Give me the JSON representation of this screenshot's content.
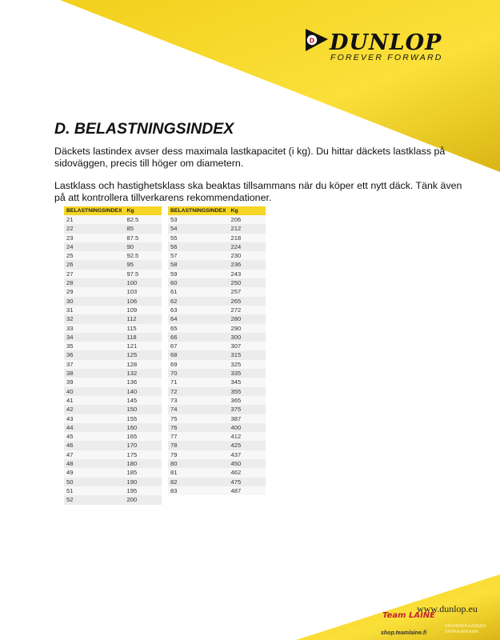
{
  "header": {
    "brand": "DUNLOP",
    "tagline": "FOREVER FORWARD",
    "brand_color": "#f5d525"
  },
  "title": "D. BELASTNINGSINDEX",
  "paragraphs": [
    "Däckets lastindex avser dess maximala lastkapacitet (i kg). Du hittar däckets lastklass på sidoväggen, precis till höger om diametern.",
    "Lastklass och hastighetsklass ska beaktas tillsammans när du köper ett nytt däck. Tänk även på att kontrollera tillverkarens rekommendationer."
  ],
  "tables": [
    {
      "headers": [
        "BELASTNINGSINDEX",
        "Kg"
      ],
      "rows": [
        [
          "21",
          "82.5"
        ],
        [
          "22",
          "85"
        ],
        [
          "23",
          "87.5"
        ],
        [
          "24",
          "90"
        ],
        [
          "25",
          "92.5"
        ],
        [
          "26",
          "95"
        ],
        [
          "27",
          "97.5"
        ],
        [
          "28",
          "100"
        ],
        [
          "29",
          "103"
        ],
        [
          "30",
          "106"
        ],
        [
          "31",
          "109"
        ],
        [
          "32",
          "112"
        ],
        [
          "33",
          "115"
        ],
        [
          "34",
          "118"
        ],
        [
          "35",
          "121"
        ],
        [
          "36",
          "125"
        ],
        [
          "37",
          "128"
        ],
        [
          "38",
          "132"
        ],
        [
          "39",
          "136"
        ],
        [
          "40",
          "140"
        ],
        [
          "41",
          "145"
        ],
        [
          "42",
          "150"
        ],
        [
          "43",
          "155"
        ],
        [
          "44",
          "160"
        ],
        [
          "45",
          "165"
        ],
        [
          "46",
          "170"
        ],
        [
          "47",
          "175"
        ],
        [
          "48",
          "180"
        ],
        [
          "49",
          "185"
        ],
        [
          "50",
          "190"
        ],
        [
          "51",
          "195"
        ],
        [
          "52",
          "200"
        ]
      ]
    },
    {
      "headers": [
        "BELASTNINGSINDEX",
        "Kg"
      ],
      "rows": [
        [
          "53",
          "206"
        ],
        [
          "54",
          "212"
        ],
        [
          "55",
          "218"
        ],
        [
          "56",
          "224"
        ],
        [
          "57",
          "230"
        ],
        [
          "58",
          "236"
        ],
        [
          "59",
          "243"
        ],
        [
          "60",
          "250"
        ],
        [
          "61",
          "257"
        ],
        [
          "62",
          "265"
        ],
        [
          "63",
          "272"
        ],
        [
          "64",
          "280"
        ],
        [
          "65",
          "290"
        ],
        [
          "66",
          "300"
        ],
        [
          "67",
          "307"
        ],
        [
          "68",
          "315"
        ],
        [
          "69",
          "325"
        ],
        [
          "70",
          "335"
        ],
        [
          "71",
          "345"
        ],
        [
          "72",
          "355"
        ],
        [
          "73",
          "365"
        ],
        [
          "74",
          "375"
        ],
        [
          "75",
          "387"
        ],
        [
          "76",
          "400"
        ],
        [
          "77",
          "412"
        ],
        [
          "78",
          "425"
        ],
        [
          "79",
          "437"
        ],
        [
          "80",
          "450"
        ],
        [
          "81",
          "462"
        ],
        [
          "82",
          "475"
        ],
        [
          "83",
          "487"
        ]
      ]
    }
  ],
  "footer": {
    "url": "www.dunlop.eu",
    "shop_logo": "Team LAINE",
    "shop_url": "shop.teamlaine.fi",
    "slogan": [
      "VAUHDIKKAASEEN",
      "VAPAA-AIKAAN"
    ]
  }
}
